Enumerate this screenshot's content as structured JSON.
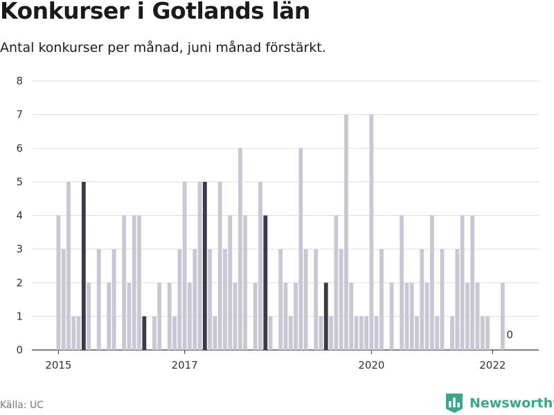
{
  "title": "Konkurser i Gotlands län",
  "subtitle": "Antal konkurser per månad, juni månad förstärkt.",
  "source": "Källa: UC",
  "brand": "Newsworthy",
  "icons": {
    "brand": "newsworthy-chart-icon"
  },
  "colors": {
    "bar": "#c8c7d3",
    "highlight": "#3b3a48",
    "grid": "#dddddd",
    "brand": "#3aa58d"
  },
  "chart_data": {
    "type": "bar",
    "title": "Konkurser i Gotlands län",
    "subtitle": "Antal konkurser per månad, juni månad förstärkt.",
    "xlabel": "",
    "ylabel": "",
    "ylim": [
      0,
      8
    ],
    "yticks": [
      0,
      1,
      2,
      3,
      4,
      5,
      6,
      7,
      8
    ],
    "xticks": [
      {
        "label": "2015",
        "index": 0
      },
      {
        "label": "2017",
        "index": 25
      },
      {
        "label": "2020",
        "index": 62
      },
      {
        "label": "2022",
        "index": 86
      }
    ],
    "grid": true,
    "highlight": "juni",
    "start": "2015-01",
    "categories": [
      "2015-01",
      "2015-02",
      "2015-03",
      "2015-04",
      "2015-05",
      "2015-06",
      "2015-07",
      "2015-08",
      "2015-09",
      "2015-10",
      "2015-11",
      "2015-12",
      "2016-01",
      "2016-02",
      "2016-03",
      "2016-04",
      "2016-05",
      "2016-06",
      "2016-07",
      "2016-08",
      "2016-09",
      "2016-10",
      "2016-11",
      "2016-12",
      "2017-01",
      "2017-02",
      "2017-03",
      "2017-04",
      "2017-05",
      "2017-06",
      "2017-07",
      "2017-08",
      "2017-09",
      "2017-10",
      "2017-11",
      "2017-12",
      "2018-01",
      "2018-02",
      "2018-03",
      "2018-04",
      "2018-05",
      "2018-06",
      "2018-07",
      "2018-08",
      "2018-09",
      "2018-10",
      "2018-11",
      "2018-12",
      "2019-01",
      "2019-02",
      "2019-03",
      "2019-04",
      "2019-05",
      "2019-06",
      "2019-07",
      "2019-08",
      "2019-09",
      "2019-10",
      "2019-11",
      "2019-12",
      "2020-01",
      "2020-02",
      "2020-03",
      "2020-04",
      "2020-05",
      "2020-06",
      "2020-07",
      "2020-08",
      "2020-09",
      "2020-10",
      "2020-11",
      "2020-12",
      "2021-01",
      "2021-02",
      "2021-03",
      "2021-04",
      "2021-05",
      "2021-06",
      "2021-07",
      "2021-08",
      "2021-09",
      "2021-10",
      "2021-11",
      "2021-12",
      "2022-01",
      "2022-02",
      "2022-03",
      "2022-04",
      "2022-05",
      "2022-06"
    ],
    "values": [
      4,
      3,
      5,
      1,
      1,
      5,
      2,
      0,
      3,
      0,
      2,
      3,
      0,
      4,
      2,
      4,
      4,
      1,
      0,
      1,
      2,
      0,
      2,
      1,
      3,
      5,
      2,
      3,
      5,
      5,
      3,
      1,
      5,
      3,
      4,
      2,
      6,
      4,
      0,
      2,
      5,
      4,
      1,
      0,
      3,
      2,
      1,
      2,
      6,
      3,
      0,
      3,
      1,
      2,
      1,
      4,
      3,
      7,
      2,
      1,
      1,
      1,
      7,
      1,
      3,
      0,
      2,
      0,
      4,
      2,
      2,
      1,
      3,
      2,
      4,
      1,
      3,
      0,
      1,
      3,
      4,
      2,
      4,
      2,
      1,
      1,
      0,
      0,
      2,
      0
    ],
    "annotations": [
      {
        "index": 89,
        "label": "0"
      }
    ]
  }
}
